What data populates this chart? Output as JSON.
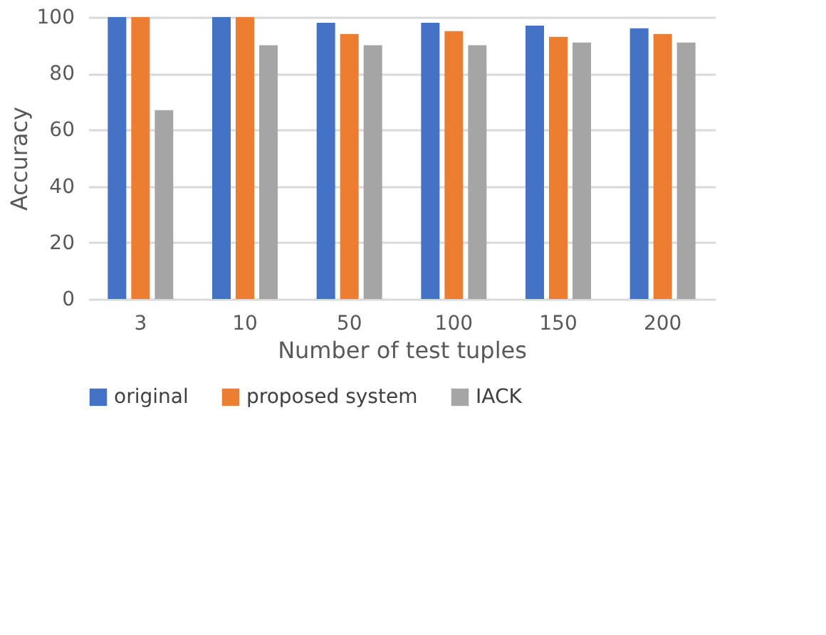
{
  "chart_data": {
    "type": "bar",
    "xlabel": "Number of test tuples",
    "ylabel": "Accuracy",
    "categories": [
      "3",
      "10",
      "50",
      "100",
      "150",
      "200"
    ],
    "series": [
      {
        "name": "original",
        "color": "#4472c4",
        "values": [
          100,
          100,
          98,
          98,
          97,
          96
        ]
      },
      {
        "name": "proposed system",
        "color": "#ed7d31",
        "values": [
          100,
          100,
          94,
          95,
          93,
          94
        ]
      },
      {
        "name": "IACK",
        "color": "#a5a5a5",
        "values": [
          67,
          90,
          90,
          90,
          91,
          91
        ]
      }
    ],
    "ylim": [
      0,
      100
    ],
    "yticks": [
      0,
      20,
      40,
      60,
      80,
      100
    ],
    "grid": "y",
    "legend": "bottom"
  }
}
